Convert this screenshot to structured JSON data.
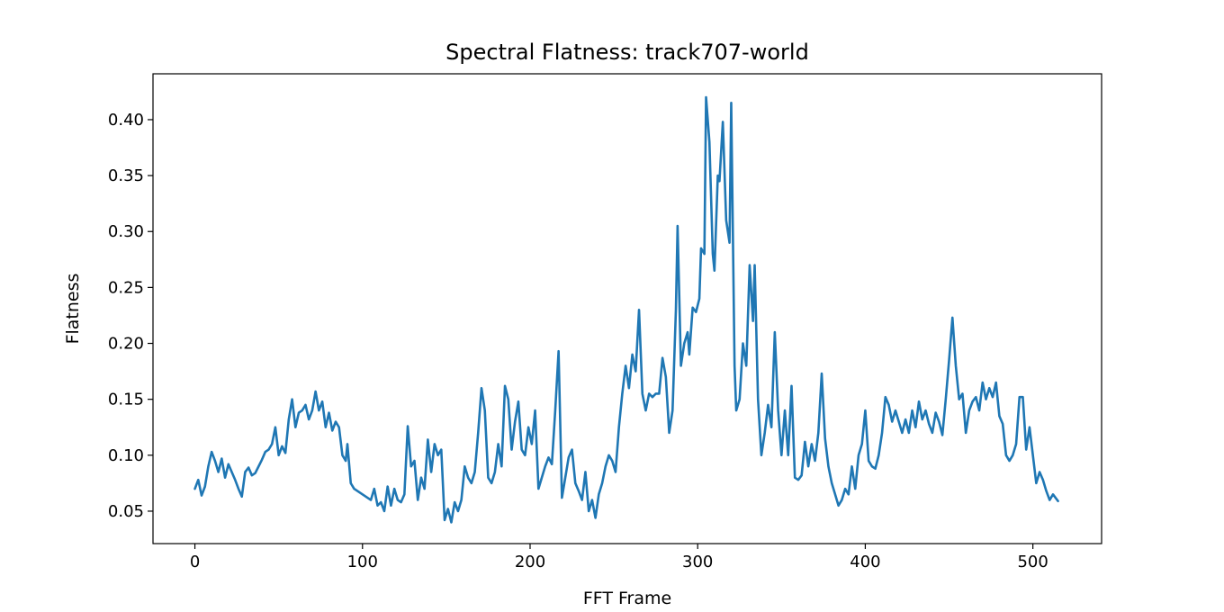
{
  "chart_data": {
    "type": "line",
    "title": "Spectral Flatness: track707-world",
    "xlabel": "FFT Frame",
    "ylabel": "Flatness",
    "xlim": [
      -25,
      541
    ],
    "ylim": [
      0.021,
      0.441
    ],
    "xticks": [
      0,
      100,
      200,
      300,
      400,
      500
    ],
    "xtick_labels": [
      "0",
      "100",
      "200",
      "300",
      "400",
      "500"
    ],
    "yticks": [
      0.05,
      0.1,
      0.15,
      0.2,
      0.25,
      0.3,
      0.35,
      0.4
    ],
    "ytick_labels": [
      "0.05",
      "0.10",
      "0.15",
      "0.20",
      "0.25",
      "0.30",
      "0.35",
      "0.40"
    ],
    "grid": false,
    "series": [
      {
        "name": "track707-world",
        "color": "#1f77b4",
        "points": [
          [
            0,
            0.07
          ],
          [
            2,
            0.078
          ],
          [
            4,
            0.064
          ],
          [
            6,
            0.072
          ],
          [
            8,
            0.09
          ],
          [
            10,
            0.103
          ],
          [
            12,
            0.095
          ],
          [
            14,
            0.085
          ],
          [
            16,
            0.097
          ],
          [
            18,
            0.08
          ],
          [
            20,
            0.092
          ],
          [
            22,
            0.085
          ],
          [
            24,
            0.078
          ],
          [
            26,
            0.07
          ],
          [
            28,
            0.063
          ],
          [
            30,
            0.085
          ],
          [
            32,
            0.089
          ],
          [
            34,
            0.082
          ],
          [
            36,
            0.084
          ],
          [
            38,
            0.09
          ],
          [
            40,
            0.096
          ],
          [
            42,
            0.103
          ],
          [
            44,
            0.105
          ],
          [
            46,
            0.11
          ],
          [
            48,
            0.125
          ],
          [
            50,
            0.1
          ],
          [
            52,
            0.108
          ],
          [
            54,
            0.102
          ],
          [
            56,
            0.132
          ],
          [
            58,
            0.15
          ],
          [
            60,
            0.125
          ],
          [
            62,
            0.138
          ],
          [
            64,
            0.14
          ],
          [
            66,
            0.145
          ],
          [
            68,
            0.132
          ],
          [
            70,
            0.14
          ],
          [
            72,
            0.157
          ],
          [
            74,
            0.14
          ],
          [
            76,
            0.148
          ],
          [
            78,
            0.125
          ],
          [
            80,
            0.138
          ],
          [
            82,
            0.122
          ],
          [
            84,
            0.13
          ],
          [
            86,
            0.125
          ],
          [
            88,
            0.1
          ],
          [
            90,
            0.095
          ],
          [
            91,
            0.11
          ],
          [
            93,
            0.075
          ],
          [
            95,
            0.07
          ],
          [
            97,
            0.068
          ],
          [
            99,
            0.066
          ],
          [
            101,
            0.064
          ],
          [
            103,
            0.062
          ],
          [
            105,
            0.06
          ],
          [
            107,
            0.07
          ],
          [
            109,
            0.055
          ],
          [
            111,
            0.058
          ],
          [
            113,
            0.05
          ],
          [
            115,
            0.072
          ],
          [
            117,
            0.055
          ],
          [
            119,
            0.07
          ],
          [
            121,
            0.06
          ],
          [
            123,
            0.058
          ],
          [
            125,
            0.065
          ],
          [
            127,
            0.126
          ],
          [
            129,
            0.09
          ],
          [
            131,
            0.095
          ],
          [
            133,
            0.06
          ],
          [
            135,
            0.08
          ],
          [
            137,
            0.07
          ],
          [
            139,
            0.114
          ],
          [
            141,
            0.085
          ],
          [
            143,
            0.11
          ],
          [
            145,
            0.1
          ],
          [
            147,
            0.105
          ],
          [
            149,
            0.042
          ],
          [
            151,
            0.052
          ],
          [
            153,
            0.04
          ],
          [
            155,
            0.058
          ],
          [
            157,
            0.05
          ],
          [
            159,
            0.06
          ],
          [
            161,
            0.09
          ],
          [
            163,
            0.08
          ],
          [
            165,
            0.075
          ],
          [
            167,
            0.085
          ],
          [
            169,
            0.12
          ],
          [
            171,
            0.16
          ],
          [
            173,
            0.14
          ],
          [
            175,
            0.08
          ],
          [
            177,
            0.075
          ],
          [
            179,
            0.085
          ],
          [
            181,
            0.11
          ],
          [
            183,
            0.09
          ],
          [
            185,
            0.162
          ],
          [
            187,
            0.15
          ],
          [
            189,
            0.105
          ],
          [
            191,
            0.13
          ],
          [
            193,
            0.148
          ],
          [
            195,
            0.105
          ],
          [
            197,
            0.1
          ],
          [
            199,
            0.125
          ],
          [
            201,
            0.11
          ],
          [
            203,
            0.14
          ],
          [
            205,
            0.07
          ],
          [
            207,
            0.08
          ],
          [
            209,
            0.09
          ],
          [
            211,
            0.098
          ],
          [
            213,
            0.092
          ],
          [
            215,
            0.14
          ],
          [
            217,
            0.193
          ],
          [
            219,
            0.062
          ],
          [
            221,
            0.08
          ],
          [
            223,
            0.098
          ],
          [
            225,
            0.105
          ],
          [
            227,
            0.075
          ],
          [
            229,
            0.068
          ],
          [
            231,
            0.06
          ],
          [
            233,
            0.085
          ],
          [
            235,
            0.05
          ],
          [
            237,
            0.06
          ],
          [
            239,
            0.044
          ],
          [
            241,
            0.065
          ],
          [
            243,
            0.075
          ],
          [
            245,
            0.09
          ],
          [
            247,
            0.1
          ],
          [
            249,
            0.095
          ],
          [
            251,
            0.085
          ],
          [
            253,
            0.125
          ],
          [
            255,
            0.155
          ],
          [
            257,
            0.18
          ],
          [
            259,
            0.16
          ],
          [
            261,
            0.19
          ],
          [
            263,
            0.175
          ],
          [
            265,
            0.23
          ],
          [
            267,
            0.155
          ],
          [
            269,
            0.14
          ],
          [
            271,
            0.155
          ],
          [
            273,
            0.152
          ],
          [
            275,
            0.155
          ],
          [
            277,
            0.155
          ],
          [
            279,
            0.187
          ],
          [
            281,
            0.17
          ],
          [
            283,
            0.12
          ],
          [
            285,
            0.14
          ],
          [
            287,
            0.23
          ],
          [
            288,
            0.305
          ],
          [
            290,
            0.18
          ],
          [
            292,
            0.2
          ],
          [
            294,
            0.21
          ],
          [
            295,
            0.19
          ],
          [
            297,
            0.232
          ],
          [
            299,
            0.228
          ],
          [
            301,
            0.24
          ],
          [
            302,
            0.285
          ],
          [
            304,
            0.28
          ],
          [
            305,
            0.42
          ],
          [
            307,
            0.38
          ],
          [
            309,
            0.28
          ],
          [
            310,
            0.265
          ],
          [
            312,
            0.35
          ],
          [
            313,
            0.345
          ],
          [
            315,
            0.398
          ],
          [
            317,
            0.31
          ],
          [
            319,
            0.29
          ],
          [
            320,
            0.415
          ],
          [
            322,
            0.18
          ],
          [
            323,
            0.14
          ],
          [
            325,
            0.15
          ],
          [
            327,
            0.2
          ],
          [
            329,
            0.18
          ],
          [
            331,
            0.27
          ],
          [
            333,
            0.22
          ],
          [
            334,
            0.27
          ],
          [
            336,
            0.15
          ],
          [
            338,
            0.1
          ],
          [
            340,
            0.12
          ],
          [
            342,
            0.145
          ],
          [
            344,
            0.125
          ],
          [
            346,
            0.21
          ],
          [
            348,
            0.14
          ],
          [
            350,
            0.1
          ],
          [
            352,
            0.14
          ],
          [
            354,
            0.1
          ],
          [
            356,
            0.162
          ],
          [
            358,
            0.08
          ],
          [
            360,
            0.078
          ],
          [
            362,
            0.082
          ],
          [
            364,
            0.112
          ],
          [
            366,
            0.09
          ],
          [
            368,
            0.11
          ],
          [
            370,
            0.095
          ],
          [
            372,
            0.12
          ],
          [
            374,
            0.173
          ],
          [
            376,
            0.115
          ],
          [
            378,
            0.09
          ],
          [
            380,
            0.075
          ],
          [
            382,
            0.065
          ],
          [
            384,
            0.055
          ],
          [
            386,
            0.06
          ],
          [
            388,
            0.07
          ],
          [
            390,
            0.065
          ],
          [
            392,
            0.09
          ],
          [
            394,
            0.07
          ],
          [
            396,
            0.1
          ],
          [
            398,
            0.11
          ],
          [
            400,
            0.14
          ],
          [
            402,
            0.095
          ],
          [
            404,
            0.09
          ],
          [
            406,
            0.088
          ],
          [
            408,
            0.1
          ],
          [
            410,
            0.12
          ],
          [
            412,
            0.152
          ],
          [
            414,
            0.145
          ],
          [
            416,
            0.13
          ],
          [
            418,
            0.14
          ],
          [
            420,
            0.13
          ],
          [
            422,
            0.12
          ],
          [
            424,
            0.132
          ],
          [
            426,
            0.12
          ],
          [
            428,
            0.14
          ],
          [
            430,
            0.125
          ],
          [
            432,
            0.148
          ],
          [
            434,
            0.132
          ],
          [
            436,
            0.14
          ],
          [
            438,
            0.128
          ],
          [
            440,
            0.12
          ],
          [
            442,
            0.138
          ],
          [
            444,
            0.13
          ],
          [
            446,
            0.118
          ],
          [
            448,
            0.15
          ],
          [
            450,
            0.185
          ],
          [
            452,
            0.223
          ],
          [
            454,
            0.18
          ],
          [
            456,
            0.15
          ],
          [
            458,
            0.155
          ],
          [
            460,
            0.12
          ],
          [
            462,
            0.14
          ],
          [
            464,
            0.148
          ],
          [
            466,
            0.152
          ],
          [
            468,
            0.14
          ],
          [
            470,
            0.165
          ],
          [
            472,
            0.15
          ],
          [
            474,
            0.16
          ],
          [
            476,
            0.152
          ],
          [
            478,
            0.165
          ],
          [
            480,
            0.135
          ],
          [
            482,
            0.128
          ],
          [
            484,
            0.1
          ],
          [
            486,
            0.095
          ],
          [
            488,
            0.1
          ],
          [
            490,
            0.11
          ],
          [
            492,
            0.152
          ],
          [
            494,
            0.152
          ],
          [
            496,
            0.105
          ],
          [
            498,
            0.125
          ],
          [
            500,
            0.1
          ],
          [
            502,
            0.075
          ],
          [
            504,
            0.085
          ],
          [
            506,
            0.078
          ],
          [
            508,
            0.068
          ],
          [
            510,
            0.06
          ],
          [
            512,
            0.065
          ],
          [
            515,
            0.059
          ]
        ]
      }
    ]
  }
}
